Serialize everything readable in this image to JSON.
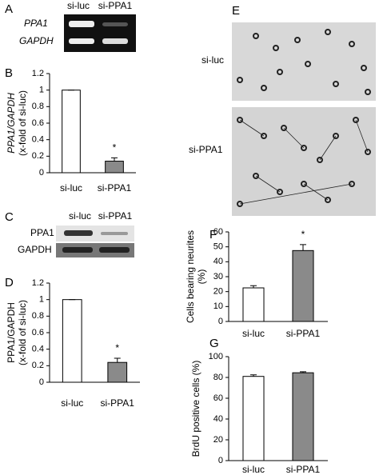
{
  "panels": {
    "A": {
      "letter": "A",
      "lanes": [
        "si-luc",
        "si-PPA1"
      ],
      "rows": [
        "PPA1",
        "GAPDH"
      ]
    },
    "C": {
      "letter": "C",
      "lanes": [
        "si-luc",
        "si-PPA1"
      ],
      "rows": [
        "PPA1",
        "GAPDH"
      ]
    },
    "E": {
      "letter": "E",
      "images": [
        "si-luc",
        "si-PPA1"
      ]
    }
  },
  "chart_data": [
    {
      "type": "bar",
      "letter": "B",
      "ylabel": [
        "PPA1/GAPDH",
        "(x-fold of si-luc)"
      ],
      "categories": [
        "si-luc",
        "si-PPA1"
      ],
      "values": [
        1,
        0.14
      ],
      "errors": [
        0,
        0.04
      ],
      "colors": [
        "#ffffff",
        "#8a8a8a"
      ],
      "ylim": [
        0,
        1.2
      ],
      "yticks": [
        0,
        0.2,
        0.4,
        0.6,
        0.8,
        1,
        1.2
      ],
      "annotation": "*"
    },
    {
      "type": "bar",
      "letter": "D",
      "ylabel": [
        "PPA1/GAPDH",
        "(x-fold of si-luc)"
      ],
      "categories": [
        "si-luc",
        "si-PPA1"
      ],
      "values": [
        1,
        0.24
      ],
      "errors": [
        0,
        0.05
      ],
      "colors": [
        "#ffffff",
        "#8a8a8a"
      ],
      "ylim": [
        0,
        1.2
      ],
      "yticks": [
        0,
        0.2,
        0.4,
        0.6,
        0.8,
        1,
        1.2
      ],
      "annotation": "*"
    },
    {
      "type": "bar",
      "letter": "F",
      "ylabel": [
        "Cells bearing neurites",
        "(%)"
      ],
      "categories": [
        "si-luc",
        "si-PPA1"
      ],
      "values": [
        22.5,
        47.5
      ],
      "errors": [
        1.5,
        4
      ],
      "colors": [
        "#ffffff",
        "#8a8a8a"
      ],
      "ylim": [
        0,
        60
      ],
      "yticks": [
        0,
        10,
        20,
        30,
        40,
        50,
        60
      ],
      "annotation": "*"
    },
    {
      "type": "bar",
      "letter": "G",
      "ylabel": [
        "BrdU positive cells (%)"
      ],
      "categories": [
        "si-luc",
        "si-PPA1"
      ],
      "values": [
        81,
        84.5
      ],
      "errors": [
        1.5,
        1
      ],
      "colors": [
        "#ffffff",
        "#8a8a8a"
      ],
      "ylim": [
        0,
        100
      ],
      "yticks": [
        0,
        20,
        40,
        60,
        80,
        100
      ]
    }
  ]
}
